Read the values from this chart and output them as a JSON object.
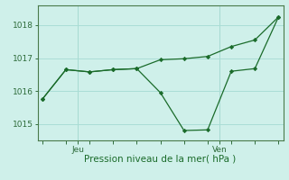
{
  "background_color": "#cff0ea",
  "grid_color": "#aaddd6",
  "line_color": "#1a6b2a",
  "marker_color": "#1a6b2a",
  "xlabel": "Pression niveau de la mer( hPa )",
  "xlabel_color": "#1a6b2a",
  "tick_color": "#2d6b3a",
  "spine_color": "#4a7a4a",
  "ylim": [
    1014.5,
    1018.6
  ],
  "yticks": [
    1015,
    1016,
    1017,
    1018
  ],
  "series1_x": [
    0,
    1,
    2,
    3,
    4,
    5,
    6,
    7,
    8,
    9,
    10
  ],
  "series1_y": [
    1015.75,
    1016.65,
    1016.58,
    1016.65,
    1016.68,
    1016.95,
    1016.98,
    1017.05,
    1017.35,
    1017.55,
    1018.25
  ],
  "series2_x": [
    0,
    1,
    2,
    3,
    4,
    5,
    6,
    7,
    8,
    9,
    10
  ],
  "series2_y": [
    1015.75,
    1016.65,
    1016.58,
    1016.65,
    1016.68,
    1015.95,
    1014.8,
    1014.82,
    1016.6,
    1016.68,
    1018.25
  ],
  "jeu_x": 1.5,
  "ven_x": 7.5,
  "xlim": [
    -0.2,
    10.2
  ],
  "minor_xticks": [
    0,
    1,
    2,
    3,
    4,
    5,
    6,
    7,
    8,
    9,
    10
  ]
}
